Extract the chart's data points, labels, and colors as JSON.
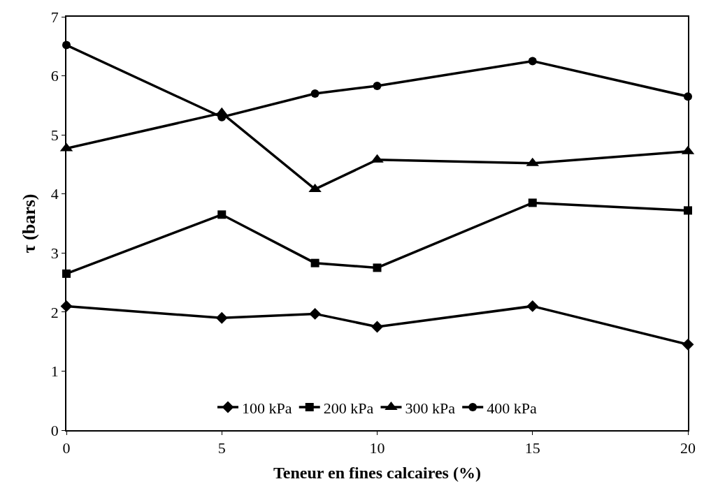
{
  "chart_data": {
    "type": "line",
    "xlabel": "Teneur en fines calcaires (%)",
    "ylabel": "τ (bars)",
    "x": [
      0,
      5,
      8,
      10,
      15,
      20
    ],
    "xlim": [
      0,
      20
    ],
    "xticks": [
      0,
      5,
      10,
      15,
      20
    ],
    "ylim": [
      0,
      7
    ],
    "yticks": [
      0,
      1,
      2,
      3,
      4,
      5,
      6,
      7
    ],
    "grid": false,
    "legend": "bottom",
    "line_style": "solid",
    "series": [
      {
        "name": "100 kPa",
        "color": "#000000",
        "marker": "diamond",
        "values": [
          2.1,
          1.9,
          1.97,
          1.75,
          2.1,
          1.45
        ]
      },
      {
        "name": "200 kPa",
        "color": "#000000",
        "marker": "square",
        "values": [
          2.65,
          3.65,
          2.83,
          2.75,
          3.85,
          3.72
        ]
      },
      {
        "name": "300 kPa",
        "color": "#000000",
        "marker": "triangle",
        "values": [
          4.77,
          5.37,
          4.08,
          4.58,
          4.52,
          4.72
        ]
      },
      {
        "name": "400 kPa",
        "color": "#000000",
        "marker": "circle",
        "values": [
          6.52,
          5.3,
          5.7,
          5.83,
          6.25,
          5.65
        ]
      }
    ]
  }
}
